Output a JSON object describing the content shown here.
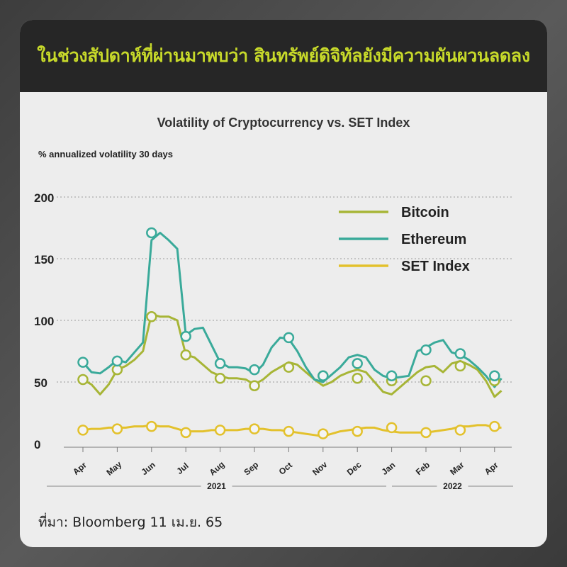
{
  "header": {
    "banner": "ในช่วงสัปดาห์ที่ผ่านมาพบว่า สินทรัพย์ดิจิทัลยังมีความผันผวนลดลง"
  },
  "footer": {
    "source": "ที่มา: Bloomberg 11 เม.ย. 65"
  },
  "colors": {
    "bitcoin": "#a7b536",
    "ethereum": "#3aaa9a",
    "set_index": "#e3c12c",
    "banner_text": "#c7d92a"
  },
  "chart_data": {
    "type": "line",
    "title": "Volatility of Cryptocurrency  vs. SET Index",
    "ylabel": "% annualized volatility 30 days",
    "xlabel": "",
    "ylim": [
      0,
      200
    ],
    "yticks": [
      0,
      50,
      100,
      150,
      200
    ],
    "grid": true,
    "legend_position": "top-right",
    "x_tick_labels": [
      "Apr",
      "May",
      "Jun",
      "Jul",
      "Aug",
      "Sep",
      "Oct",
      "Nov",
      "Dec",
      "Jan",
      "Feb",
      "Mar",
      "Apr"
    ],
    "year_labels": [
      {
        "label": "2021",
        "from_month": "Apr",
        "to_month": "Dec"
      },
      {
        "label": "2022",
        "from_month": "Jan",
        "to_month": "Apr"
      }
    ],
    "x_months": [
      0,
      0.25,
      0.5,
      0.75,
      1,
      1.25,
      1.5,
      1.75,
      2,
      2.25,
      2.5,
      2.75,
      3,
      3.25,
      3.5,
      3.75,
      4,
      4.25,
      4.5,
      4.75,
      5,
      5.25,
      5.5,
      5.75,
      6,
      6.25,
      6.5,
      6.75,
      7,
      7.25,
      7.5,
      7.75,
      8,
      8.25,
      8.5,
      8.75,
      9,
      9.25,
      9.5,
      9.75,
      10,
      10.25,
      10.5,
      10.75,
      11,
      11.25,
      11.5,
      11.75,
      12,
      12.2
    ],
    "series": [
      {
        "name": "Bitcoin",
        "values": [
          52,
          48,
          40,
          48,
          60,
          63,
          68,
          75,
          105,
          103,
          103,
          100,
          72,
          70,
          64,
          58,
          55,
          53,
          53,
          52,
          48,
          52,
          58,
          62,
          66,
          64,
          58,
          52,
          47,
          50,
          55,
          58,
          60,
          58,
          50,
          42,
          40,
          46,
          52,
          58,
          62,
          63,
          58,
          65,
          67,
          64,
          60,
          51,
          38,
          43
        ],
        "markers": [
          52,
          60,
          103,
          72,
          53,
          47,
          62,
          55,
          53,
          51,
          51,
          63,
          51
        ]
      },
      {
        "name": "Ethereum",
        "values": [
          66,
          58,
          57,
          62,
          68,
          66,
          74,
          82,
          165,
          171,
          165,
          158,
          88,
          93,
          94,
          80,
          66,
          62,
          62,
          61,
          57,
          64,
          78,
          86,
          85,
          75,
          62,
          52,
          50,
          56,
          62,
          70,
          72,
          70,
          60,
          55,
          53,
          54,
          55,
          75,
          78,
          82,
          84,
          74,
          72,
          68,
          62,
          55,
          46,
          53
        ],
        "markers": [
          66,
          67,
          171,
          87,
          65,
          60,
          86,
          55,
          65,
          55,
          76,
          73,
          55
        ]
      },
      {
        "name": "SET Index",
        "values": [
          11,
          12,
          12,
          13,
          13,
          13,
          14,
          14,
          15,
          14,
          14,
          12,
          10,
          10,
          10,
          11,
          11,
          11,
          11,
          12,
          12,
          12,
          11,
          11,
          10,
          9,
          8,
          7,
          6,
          8,
          10,
          11,
          12,
          13,
          13,
          11,
          10,
          9,
          9,
          9,
          9,
          10,
          11,
          12,
          14,
          14,
          15,
          15,
          13,
          13
        ],
        "markers": [
          11,
          12,
          14,
          9,
          11,
          12,
          10,
          8,
          10,
          13,
          9,
          11,
          14
        ]
      }
    ]
  }
}
